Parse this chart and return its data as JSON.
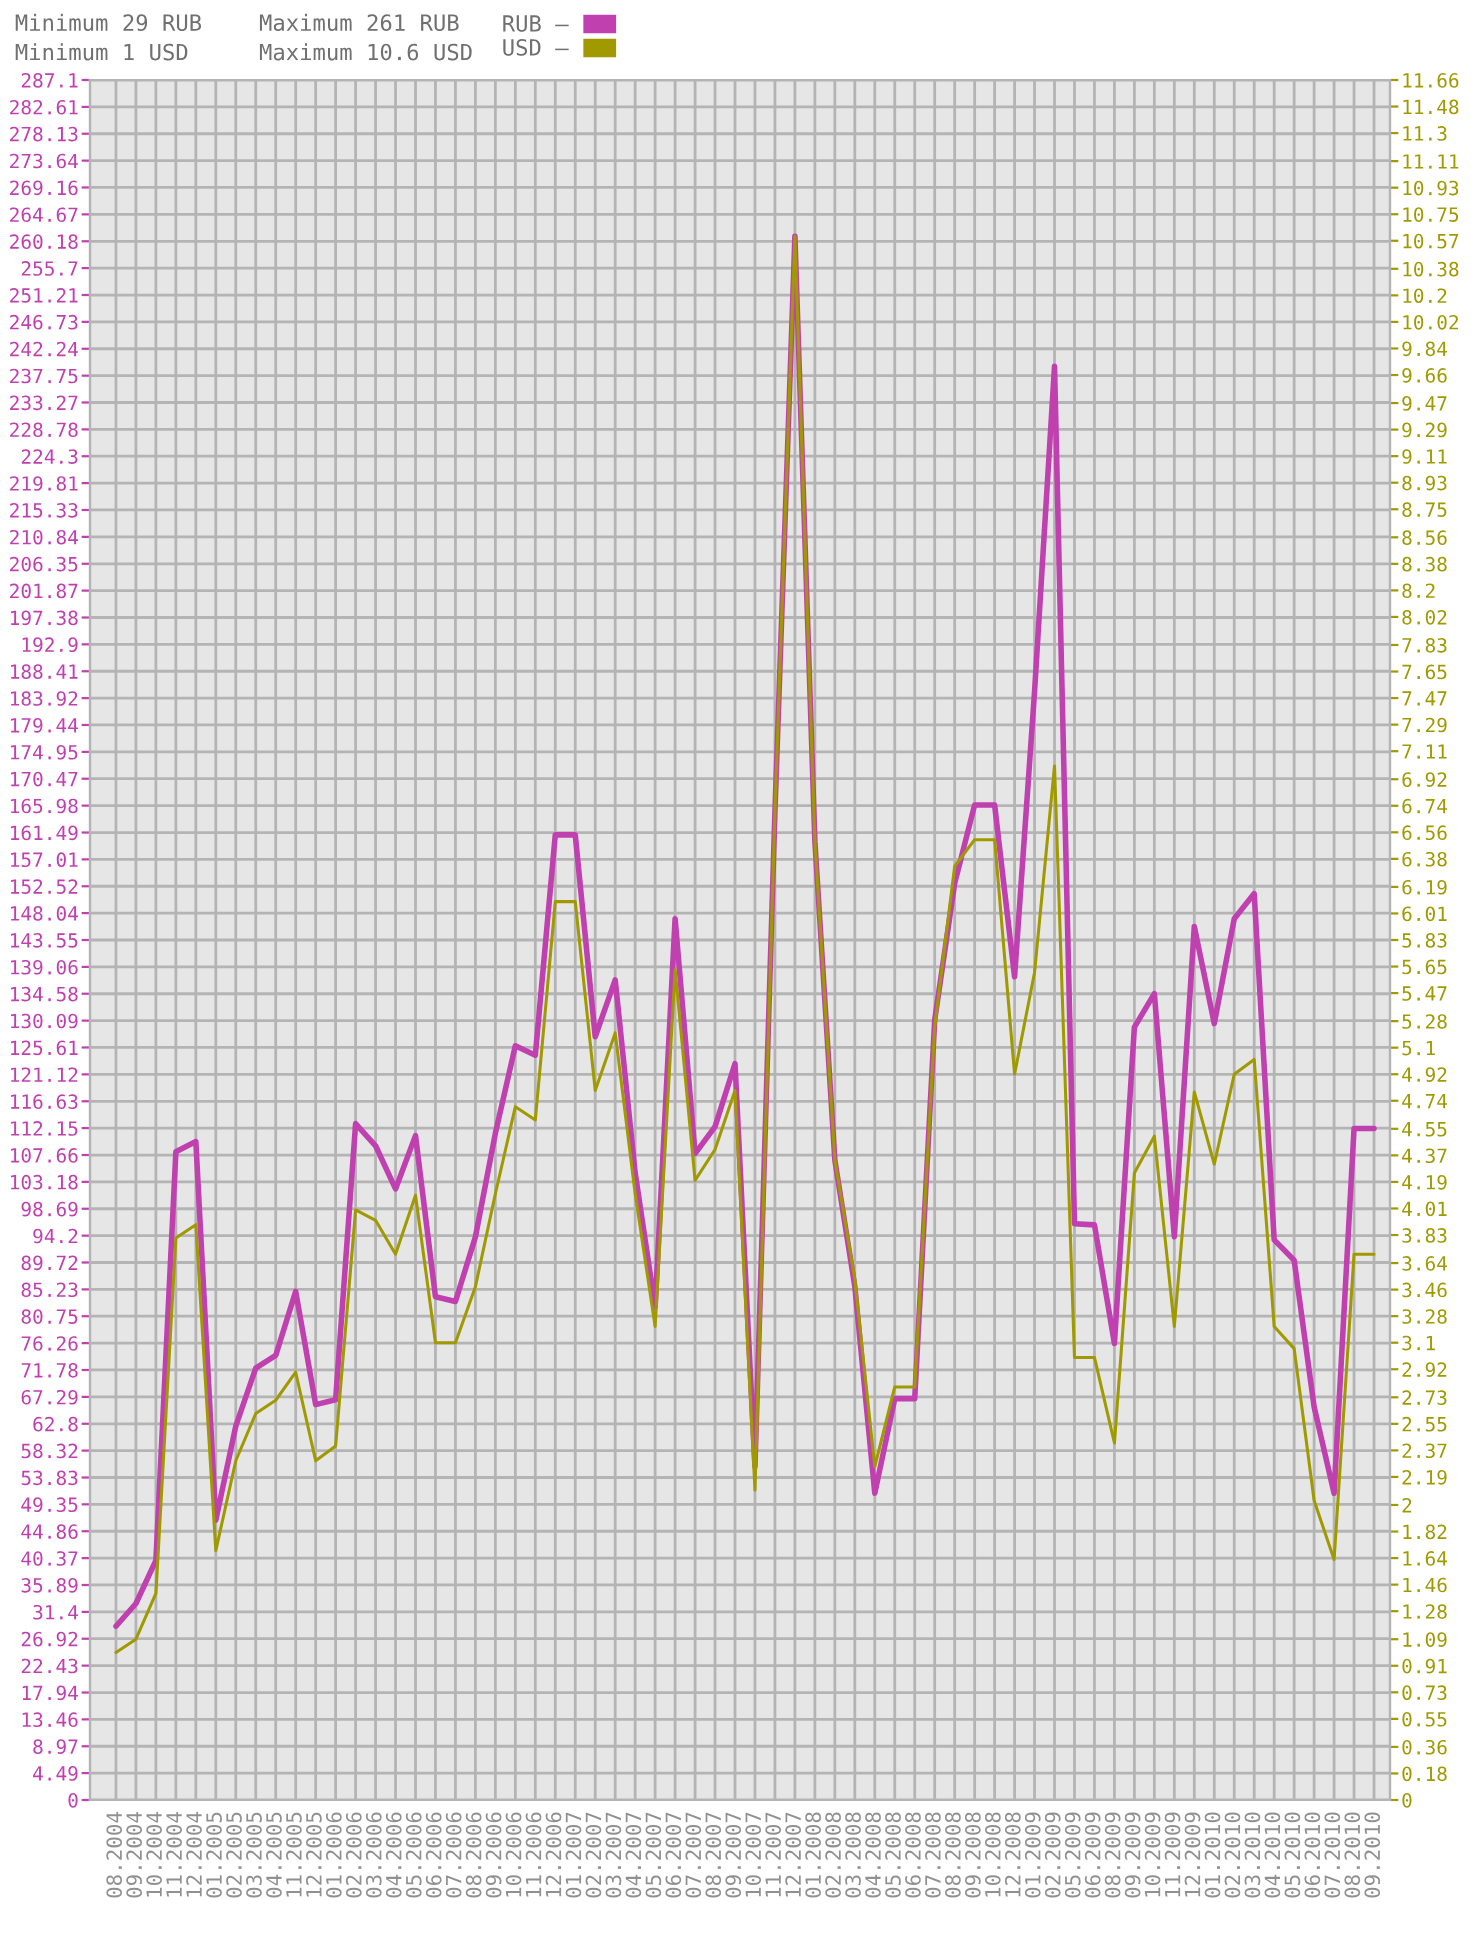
{
  "chart_data": {
    "type": "line",
    "annotations": [
      "Minimum 29 RUB",
      "Minimum 1 USD",
      "Maximum 261 RUB",
      "Maximum 10.6 USD"
    ],
    "categories": [
      "08.2004",
      "09.2004",
      "10.2004",
      "11.2004",
      "12.2004",
      "01.2005",
      "02.2005",
      "03.2005",
      "04.2005",
      "11.2005",
      "12.2005",
      "01.2006",
      "02.2006",
      "03.2006",
      "04.2006",
      "05.2006",
      "06.2006",
      "07.2006",
      "08.2006",
      "09.2006",
      "10.2006",
      "11.2006",
      "12.2006",
      "01.2007",
      "02.2007",
      "03.2007",
      "04.2007",
      "05.2007",
      "06.2007",
      "07.2007",
      "08.2007",
      "09.2007",
      "10.2007",
      "11.2007",
      "12.2007",
      "01.2008",
      "02.2008",
      "03.2008",
      "04.2008",
      "05.2008",
      "06.2008",
      "07.2008",
      "08.2008",
      "09.2008",
      "10.2008",
      "12.2008",
      "01.2009",
      "02.2009",
      "05.2009",
      "06.2009",
      "08.2009",
      "09.2009",
      "10.2009",
      "11.2009",
      "12.2009",
      "01.2010",
      "02.2010",
      "03.2010",
      "04.2010",
      "05.2010",
      "06.2010",
      "07.2010",
      "08.2010",
      "09.2010"
    ],
    "series": [
      {
        "name": "RUB –",
        "color": "#c040b0",
        "axis": "y",
        "values": [
          29,
          32.8,
          40,
          108.2,
          109.9,
          46.7,
          62.4,
          72.1,
          74.2,
          84.9,
          66,
          66.8,
          112.9,
          109.2,
          102,
          110.9,
          84,
          83.2,
          94,
          111.3,
          125.9,
          124.3,
          161.1,
          161.1,
          127.4,
          136.9,
          104.7,
          82.3,
          147.1,
          107.9,
          112.4,
          122.9,
          55.7,
          165,
          261,
          160,
          106.8,
          85.7,
          51.2,
          67,
          67,
          130.2,
          153,
          166.1,
          166.1,
          137.4,
          185,
          239.3,
          96.2,
          96,
          76.2,
          129,
          134.6,
          94,
          145.8,
          129.6,
          147.1,
          151.3,
          93.5,
          90.1,
          65.6,
          51.2,
          112.1,
          112.1
        ]
      },
      {
        "name": "USD –",
        "color": "#a09a00",
        "axis": "y2",
        "values": [
          1,
          1.09,
          1.4,
          3.81,
          3.9,
          1.69,
          2.3,
          2.62,
          2.71,
          2.9,
          2.3,
          2.4,
          4,
          3.93,
          3.7,
          4.1,
          3.1,
          3.1,
          3.48,
          4.11,
          4.7,
          4.61,
          6.09,
          6.09,
          4.81,
          5.2,
          4.11,
          3.21,
          5.63,
          4.2,
          4.41,
          4.81,
          2.1,
          6.7,
          10.6,
          6.5,
          4.34,
          3.53,
          2.26,
          2.8,
          2.8,
          5.24,
          6.33,
          6.51,
          6.51,
          4.92,
          5.61,
          7.01,
          3,
          3,
          2.42,
          4.25,
          4.5,
          3.21,
          4.8,
          4.31,
          4.92,
          5.02,
          3.21,
          3.06,
          2.03,
          1.63,
          3.7,
          3.7
        ]
      }
    ],
    "ylim": [
      0,
      287.1
    ],
    "yticks": [
      0,
      4.49,
      8.97,
      13.46,
      17.94,
      22.43,
      26.92,
      31.4,
      35.89,
      40.37,
      44.86,
      49.35,
      53.83,
      58.32,
      62.8,
      67.29,
      71.78,
      76.26,
      80.75,
      85.23,
      89.72,
      94.2,
      98.69,
      103.18,
      107.66,
      112.15,
      116.63,
      121.12,
      125.61,
      130.09,
      134.58,
      139.06,
      143.55,
      148.04,
      152.52,
      157.01,
      161.49,
      165.98,
      170.47,
      174.95,
      179.44,
      183.92,
      188.41,
      192.9,
      197.38,
      201.87,
      206.35,
      210.84,
      215.33,
      219.81,
      224.3,
      228.78,
      233.27,
      237.75,
      242.24,
      246.73,
      251.21,
      255.7,
      260.18,
      264.67,
      269.16,
      273.64,
      278.13,
      282.61,
      287.1
    ],
    "y2lim": [
      0,
      11.66
    ],
    "y2ticks": [
      0,
      0.18,
      0.36,
      0.55,
      0.73,
      0.91,
      1.09,
      1.28,
      1.46,
      1.64,
      1.82,
      2,
      2.19,
      2.37,
      2.55,
      2.73,
      2.92,
      3.1,
      3.28,
      3.46,
      3.64,
      3.83,
      4.01,
      4.19,
      4.37,
      4.55,
      4.74,
      4.92,
      5.1,
      5.28,
      5.47,
      5.65,
      5.83,
      6.01,
      6.19,
      6.38,
      6.56,
      6.74,
      6.92,
      7.11,
      7.29,
      7.47,
      7.65,
      7.83,
      8.02,
      8.2,
      8.38,
      8.56,
      8.75,
      8.93,
      9.11,
      9.29,
      9.47,
      9.66,
      9.84,
      10.02,
      10.2,
      10.38,
      10.57,
      10.75,
      10.93,
      11.11,
      11.3,
      11.48,
      11.66
    ],
    "grid": true,
    "legend": "top",
    "marker": "none",
    "line_style": "solid"
  }
}
